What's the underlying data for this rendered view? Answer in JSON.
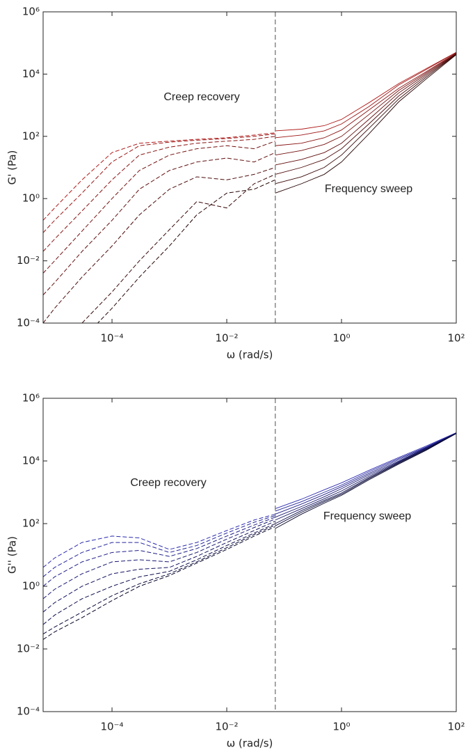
{
  "chart_data": [
    {
      "type": "line",
      "xlabel": "ω (rad/s)",
      "ylabel": "G' (Pa)",
      "log_x": true,
      "log_y": true,
      "xlim": [
        6.3e-06,
        100
      ],
      "ylim": [
        0.0001,
        1000000
      ],
      "xticks": [
        {
          "value": 0.0001,
          "label": "10⁻⁴"
        },
        {
          "value": 0.01,
          "label": "10⁻²"
        },
        {
          "value": 1,
          "label": "10⁰"
        },
        {
          "value": 100,
          "label": "10²"
        }
      ],
      "yticks": [
        {
          "value": 0.0001,
          "label": "10⁻⁴"
        },
        {
          "value": 0.01,
          "label": "10⁻²"
        },
        {
          "value": 1,
          "label": "10⁰"
        },
        {
          "value": 100,
          "label": "10²"
        },
        {
          "value": 10000,
          "label": "10⁴"
        },
        {
          "value": 1000000,
          "label": "10⁶"
        }
      ],
      "vline": 0.07,
      "annotations": [
        "Creep recovery",
        "Frequency sweep"
      ],
      "segments": [
        {
          "linestyle": "dashed",
          "x": [
            6.3e-06,
            1e-05,
            3e-05,
            0.0001,
            0.0003,
            0.001,
            0.003,
            0.01,
            0.03,
            0.07
          ],
          "series": [
            {
              "color": "#b01818",
              "values": [
                0.2,
                0.5,
                4,
                30,
                60,
                70,
                80,
                90,
                110,
                130
              ]
            },
            {
              "color": "#9c1414",
              "values": [
                0.08,
                0.2,
                1.5,
                15,
                50,
                65,
                75,
                85,
                100,
                120
              ]
            },
            {
              "color": "#881212",
              "values": [
                0.02,
                0.05,
                0.4,
                4,
                25,
                45,
                60,
                70,
                80,
                100
              ]
            },
            {
              "color": "#741010",
              "values": [
                0.004,
                0.01,
                0.09,
                1,
                8,
                25,
                40,
                50,
                40,
                70
              ]
            },
            {
              "color": "#600c0c",
              "values": [
                0.0008,
                0.002,
                0.02,
                0.2,
                2,
                8,
                15,
                20,
                15,
                30
              ]
            },
            {
              "color": "#4c0a0a",
              "values": [
                0.0001,
                0.0003,
                0.003,
                0.03,
                0.3,
                2,
                5,
                4,
                6,
                10
              ]
            },
            {
              "color": "#380606",
              "values": [
                5e-06,
                1e-05,
                0.0001,
                0.001,
                0.01,
                0.1,
                0.8,
                0.5,
                3,
                6
              ]
            },
            {
              "color": "#240202",
              "values": [
                1e-06,
                3e-06,
                3e-05,
                0.0003,
                0.003,
                0.03,
                0.3,
                1.5,
                2,
                4
              ]
            }
          ]
        },
        {
          "linestyle": "solid",
          "x": [
            0.07,
            0.2,
            0.5,
            1,
            3,
            10,
            30,
            100
          ],
          "series": [
            {
              "color": "#b01818",
              "values": [
                150,
                170,
                220,
                350,
                1200,
                5000,
                15000,
                50000
              ]
            },
            {
              "color": "#9c1414",
              "values": [
                90,
                110,
                150,
                250,
                900,
                4500,
                14000,
                50000
              ]
            },
            {
              "color": "#881212",
              "values": [
                50,
                60,
                90,
                160,
                700,
                3500,
                12000,
                48000
              ]
            },
            {
              "color": "#741010",
              "values": [
                25,
                35,
                55,
                100,
                500,
                3000,
                11000,
                46000
              ]
            },
            {
              "color": "#600c0c",
              "values": [
                12,
                18,
                30,
                60,
                350,
                2500,
                10000,
                45000
              ]
            },
            {
              "color": "#4c0a0a",
              "values": [
                6,
                10,
                18,
                40,
                250,
                2000,
                9000,
                44000
              ]
            },
            {
              "color": "#380606",
              "values": [
                3,
                5,
                10,
                25,
                180,
                1600,
                8000,
                43000
              ]
            },
            {
              "color": "#240202",
              "values": [
                1.5,
                3,
                6,
                15,
                120,
                1300,
                7000,
                42000
              ]
            }
          ]
        }
      ]
    },
    {
      "type": "line",
      "xlabel": "ω (rad/s)",
      "ylabel": "G'' (Pa)",
      "log_x": true,
      "log_y": true,
      "xlim": [
        6.3e-06,
        100
      ],
      "ylim": [
        0.0001,
        1000000
      ],
      "xticks": [
        {
          "value": 0.0001,
          "label": "10⁻⁴"
        },
        {
          "value": 0.01,
          "label": "10⁻²"
        },
        {
          "value": 1,
          "label": "10⁰"
        },
        {
          "value": 100,
          "label": "10²"
        }
      ],
      "yticks": [
        {
          "value": 0.0001,
          "label": "10⁻⁴"
        },
        {
          "value": 0.01,
          "label": "10⁻²"
        },
        {
          "value": 1,
          "label": "10⁰"
        },
        {
          "value": 100,
          "label": "10²"
        },
        {
          "value": 10000,
          "label": "10⁴"
        },
        {
          "value": 1000000,
          "label": "10⁶"
        }
      ],
      "vline": 0.07,
      "annotations": [
        "Creep recovery",
        "Frequency sweep"
      ],
      "segments": [
        {
          "linestyle": "dashed",
          "x": [
            6.3e-06,
            1e-05,
            3e-05,
            0.0001,
            0.0003,
            0.001,
            0.003,
            0.01,
            0.03,
            0.07
          ],
          "series": [
            {
              "color": "#2a2ab0",
              "values": [
                4,
                8,
                25,
                40,
                35,
                15,
                25,
                60,
                130,
                200
              ]
            },
            {
              "color": "#24249c",
              "values": [
                2,
                4,
                12,
                25,
                25,
                12,
                20,
                50,
                110,
                180
              ]
            },
            {
              "color": "#1e1e88",
              "values": [
                1,
                2,
                6,
                12,
                14,
                9,
                16,
                40,
                90,
                160
              ]
            },
            {
              "color": "#181874",
              "values": [
                0.4,
                0.8,
                2.5,
                6,
                7,
                6,
                12,
                32,
                75,
                140
              ]
            },
            {
              "color": "#121260",
              "values": [
                0.15,
                0.3,
                1,
                2.5,
                3.5,
                4,
                9,
                25,
                60,
                120
              ]
            },
            {
              "color": "#0c0c4c",
              "values": [
                0.06,
                0.12,
                0.4,
                1,
                2,
                3,
                7,
                20,
                50,
                100
              ]
            },
            {
              "color": "#060638",
              "values": [
                0.03,
                0.05,
                0.15,
                0.5,
                1.2,
                2.5,
                6,
                17,
                45,
                90
              ]
            },
            {
              "color": "#020224",
              "values": [
                0.02,
                0.035,
                0.1,
                0.35,
                1,
                2.2,
                5.5,
                15,
                40,
                80
              ]
            }
          ]
        },
        {
          "linestyle": "solid",
          "x": [
            0.07,
            0.2,
            0.5,
            1,
            3,
            10,
            30,
            100
          ],
          "series": [
            {
              "color": "#2a2ab0",
              "values": [
                300,
                600,
                1200,
                2000,
                5000,
                13000,
                30000,
                80000
              ]
            },
            {
              "color": "#24249c",
              "values": [
                250,
                500,
                1000,
                1700,
                4500,
                12000,
                28000,
                79000
              ]
            },
            {
              "color": "#1e1e88",
              "values": [
                200,
                420,
                850,
                1500,
                4000,
                11000,
                27000,
                78000
              ]
            },
            {
              "color": "#181874",
              "values": [
                160,
                350,
                720,
                1300,
                3600,
                10000,
                26000,
                77000
              ]
            },
            {
              "color": "#121260",
              "values": [
                130,
                300,
                620,
                1100,
                3200,
                9500,
                25000,
                77000
              ]
            },
            {
              "color": "#0c0c4c",
              "values": [
                100,
                260,
                550,
                950,
                2900,
                9000,
                24000,
                76000
              ]
            },
            {
              "color": "#060638",
              "values": [
                85,
                230,
                500,
                870,
                2700,
                8500,
                23000,
                75000
              ]
            },
            {
              "color": "#020224",
              "values": [
                70,
                200,
                450,
                800,
                2500,
                8000,
                22000,
                75000
              ]
            }
          ]
        }
      ]
    }
  ]
}
